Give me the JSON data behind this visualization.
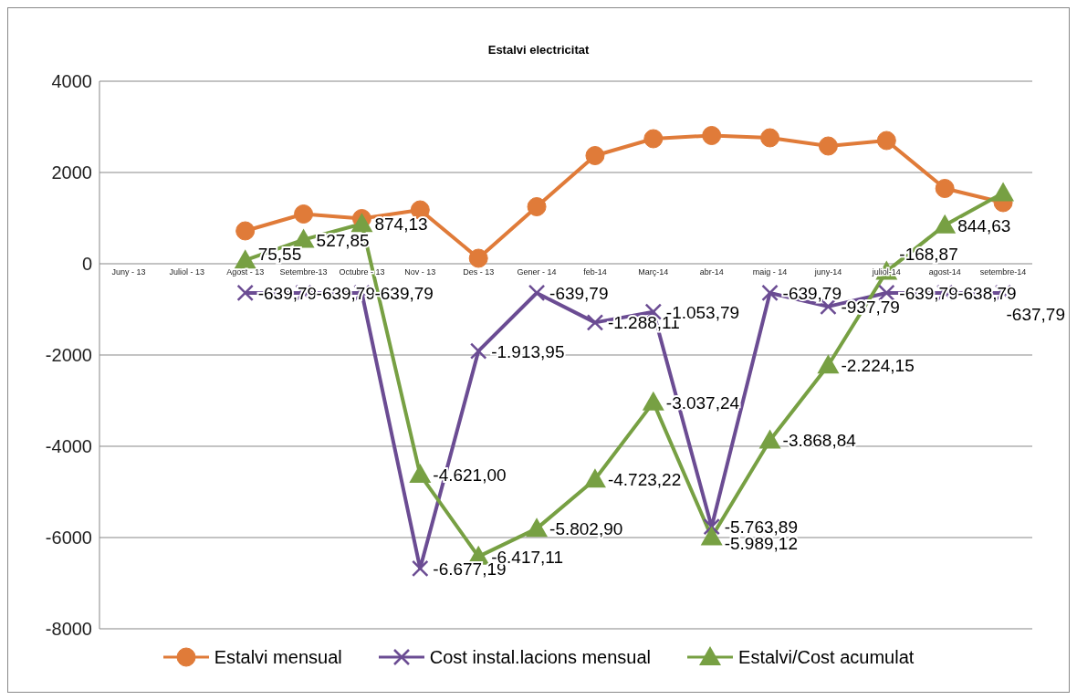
{
  "chart_data": {
    "type": "line",
    "title": "Estalvi electricitat",
    "categories": [
      "Juny - 13",
      "Juliol - 13",
      "Agost - 13",
      "Setembre-13",
      "Octubre - 13",
      "Nov - 13",
      "Des - 13",
      "Gener - 14",
      "feb-14",
      "Març-14",
      "abr-14",
      "maig - 14",
      "juny-14",
      "juliol-14",
      "agost-14",
      "setembre-14"
    ],
    "series": [
      {
        "name": "Estalvi mensual",
        "color": "#e07b39",
        "marker": "circle",
        "values": [
          null,
          null,
          720,
          1090,
          990,
          1180,
          120,
          1250,
          2370,
          2740,
          2810,
          2760,
          2580,
          2700,
          1650,
          1340
        ]
      },
      {
        "name": "Cost instal.lacions mensual",
        "color": "#6b4c93",
        "marker": "cross",
        "values": [
          null,
          null,
          -639.79,
          -639.79,
          -639.79,
          -6677.19,
          -1913.95,
          -639.79,
          -1288.11,
          -1053.79,
          -5763.89,
          -639.79,
          -937.79,
          -639.79,
          -638.79,
          -637.79
        ],
        "value_labels": [
          null,
          null,
          "-639,79",
          "-639,79",
          "-639,79",
          "-6.677,19",
          "-1.913,95",
          "-639,79",
          "-1.288,11",
          "-1.053,79",
          "-5.763,89",
          "-639,79",
          "-937,79",
          "-639,79",
          "-638,79",
          "-637,79"
        ]
      },
      {
        "name": "Estalvi/Cost acumulat",
        "color": "#77a043",
        "marker": "triangle",
        "values": [
          null,
          null,
          75.55,
          527.85,
          874.13,
          -4621.0,
          -6417.11,
          -5802.9,
          -4723.22,
          -3037.24,
          -5989.12,
          -3868.84,
          -2224.15,
          -168.87,
          844.63,
          1550
        ],
        "value_labels": [
          null,
          null,
          "75,55",
          "527,85",
          "874,13",
          "-4.621,00",
          "-6.417,11",
          "-5.802,90",
          "-4.723,22",
          "-3.037,24",
          "-5.989,12",
          "-3.868,84",
          "-2.224,15",
          "-168,87",
          "844,63",
          null
        ]
      }
    ],
    "ylim": [
      -8000,
      4000
    ],
    "yticks": [
      -8000,
      -6000,
      -4000,
      -2000,
      0,
      2000,
      4000
    ],
    "grid": "y",
    "legend": "bottom"
  }
}
